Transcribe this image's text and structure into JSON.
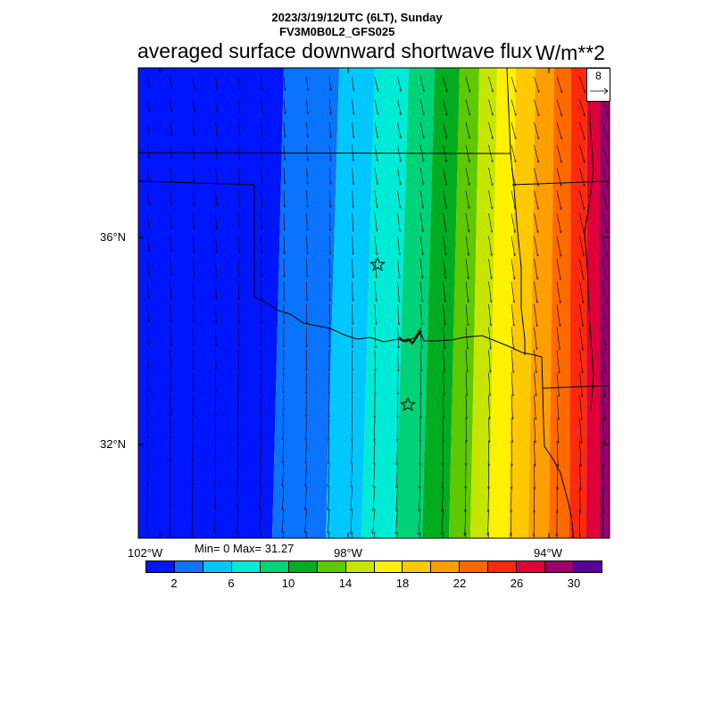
{
  "header": {
    "datetime": "2023/3/19/12UTC (6LT), Sunday",
    "model": "FV3M0B0L2_GFS025",
    "title": "averaged surface downward shortwave flux",
    "units": "W/m**2"
  },
  "reference_vector": {
    "value": "8",
    "icon": "arrow-right-icon"
  },
  "axes": {
    "lat_labels": [
      "36°N",
      "32°N"
    ],
    "lon_labels": [
      "102°W",
      "98°W",
      "94°W"
    ]
  },
  "stats": {
    "text": "Min= 0 Max= 31.27"
  },
  "colorbar": {
    "colors": [
      "#0016ff",
      "#0a73ff",
      "#00c8ff",
      "#00ebd5",
      "#00d278",
      "#00ac20",
      "#5ec800",
      "#c6e600",
      "#fef100",
      "#ffc900",
      "#ff9e00",
      "#ff6a00",
      "#ff2a0e",
      "#e0003a",
      "#9b006b",
      "#57009a"
    ],
    "labels": [
      "2",
      "6",
      "10",
      "14",
      "18",
      "22",
      "26",
      "30"
    ]
  },
  "stations": {
    "count_icon": "star-icon"
  }
}
